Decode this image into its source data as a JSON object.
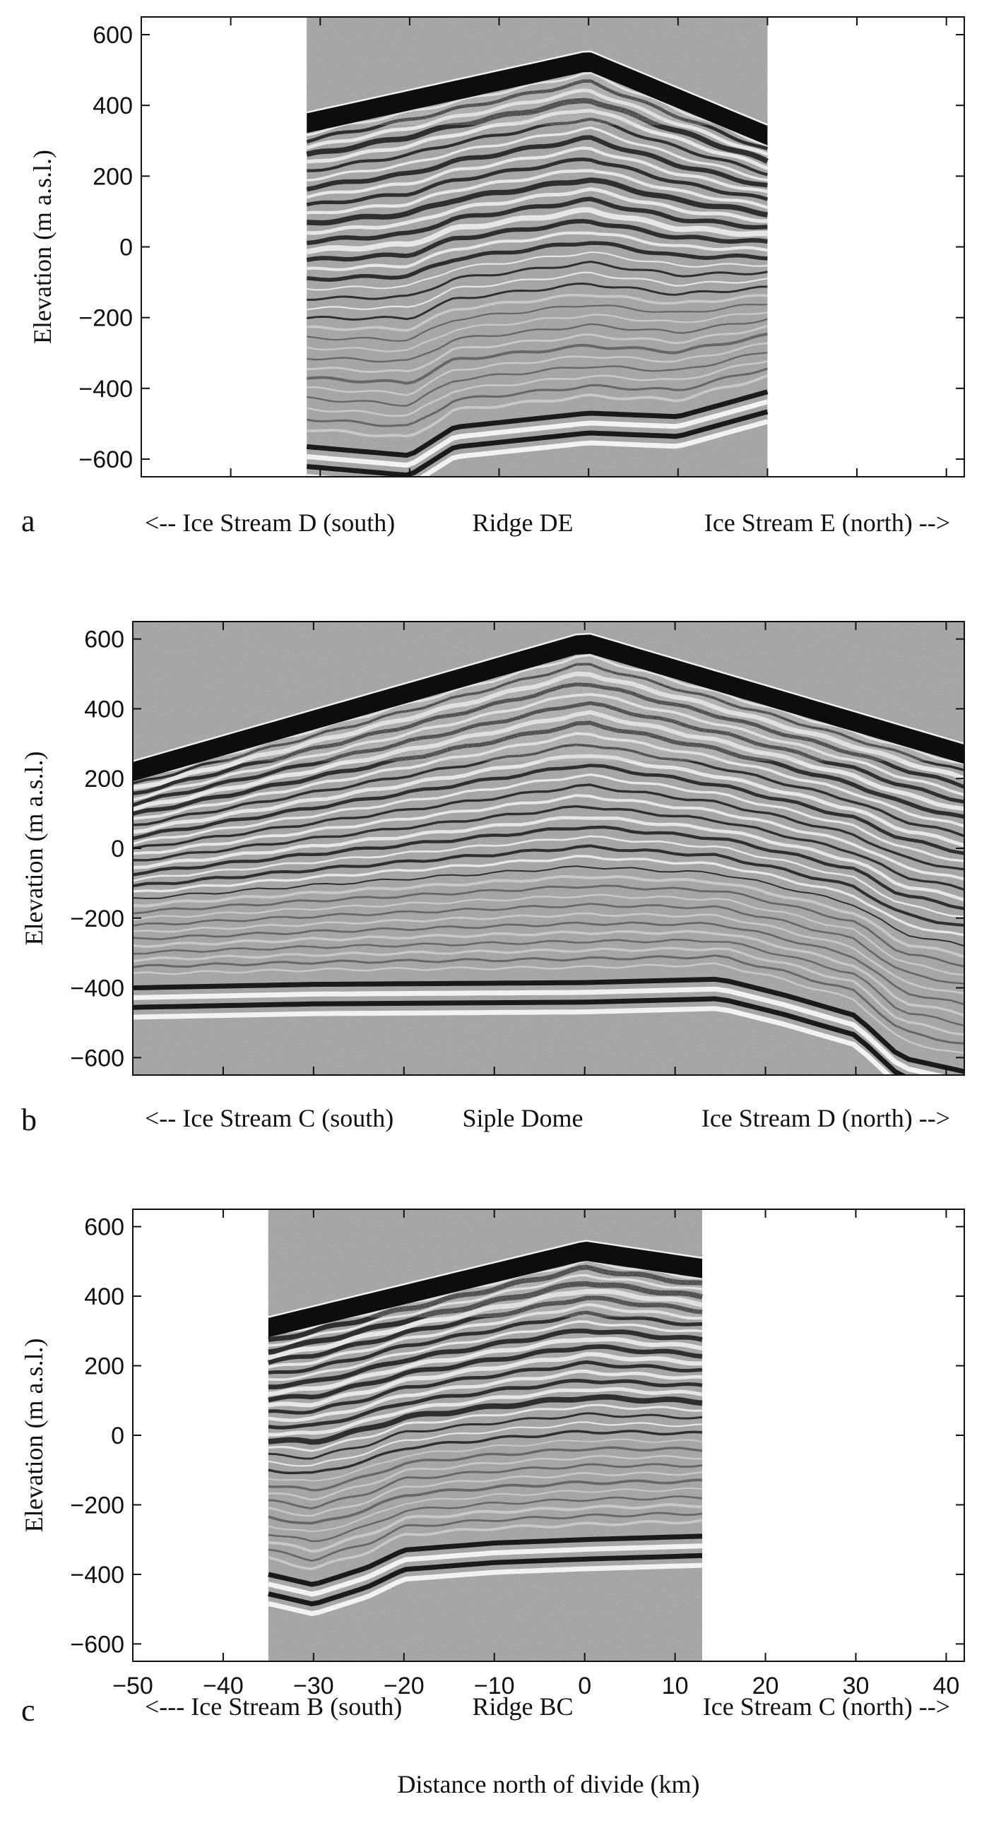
{
  "chart_data": [
    {
      "type": "heatmap",
      "panel_letter": "a",
      "ylabel": "Elevation (m a.s.l.)",
      "ylim": [
        -650,
        650
      ],
      "xlim": [
        -50,
        42
      ],
      "yticks": [
        600,
        400,
        200,
        0,
        -200,
        -400,
        -600
      ],
      "xticks": [
        -50,
        -40,
        -30,
        -20,
        -10,
        0,
        10,
        20,
        30,
        40
      ],
      "show_xtick_labels": false,
      "data_x_range": [
        -31.5,
        20
      ],
      "surface": [
        [
          -31.5,
          380
        ],
        [
          0,
          555
        ],
        [
          20,
          345
        ]
      ],
      "bed": [
        [
          -31.5,
          -565
        ],
        [
          -20,
          -590
        ],
        [
          -15,
          -510
        ],
        [
          0,
          -470
        ],
        [
          10,
          -480
        ],
        [
          20,
          -410
        ]
      ],
      "layer_peak_x": 0,
      "captions": {
        "left": "<-- Ice Stream D (south)",
        "center": "Ridge DE",
        "right": "Ice Stream E (north) -->"
      }
    },
    {
      "type": "heatmap",
      "panel_letter": "b",
      "ylabel": "Elevation (m a.s.l.)",
      "ylim": [
        -650,
        650
      ],
      "xlim": [
        -50,
        42
      ],
      "yticks": [
        600,
        400,
        200,
        0,
        -200,
        -400,
        -600
      ],
      "xticks": [
        -50,
        -40,
        -30,
        -20,
        -10,
        0,
        10,
        20,
        30,
        40
      ],
      "show_xtick_labels": false,
      "data_x_range": [
        -50,
        42
      ],
      "surface": [
        [
          -50,
          250
        ],
        [
          0,
          620
        ],
        [
          42,
          300
        ]
      ],
      "bed": [
        [
          -50,
          -400
        ],
        [
          -30,
          -390
        ],
        [
          0,
          -385
        ],
        [
          15,
          -375
        ],
        [
          22,
          -420
        ],
        [
          30,
          -480
        ],
        [
          35,
          -600
        ],
        [
          42,
          -640
        ]
      ],
      "layer_peak_x": 0,
      "captions": {
        "left": "<-- Ice Stream C (south)",
        "center": "Siple Dome",
        "right": "Ice Stream D (north) -->"
      }
    },
    {
      "type": "heatmap",
      "panel_letter": "c",
      "ylabel": "Elevation (m a.s.l.)",
      "ylim": [
        -650,
        650
      ],
      "xlim": [
        -50,
        42
      ],
      "yticks": [
        600,
        400,
        200,
        0,
        -200,
        -400,
        -600
      ],
      "xticks": [
        -50,
        -40,
        -30,
        -20,
        -10,
        0,
        10,
        20,
        30,
        40
      ],
      "show_xtick_labels": true,
      "data_x_range": [
        -35,
        13
      ],
      "surface": [
        [
          -35,
          340
        ],
        [
          0,
          560
        ],
        [
          13,
          510
        ]
      ],
      "bed": [
        [
          -35,
          -400
        ],
        [
          -30,
          -430
        ],
        [
          -24,
          -380
        ],
        [
          -20,
          -330
        ],
        [
          -10,
          -310
        ],
        [
          0,
          -300
        ],
        [
          13,
          -290
        ]
      ],
      "layer_peak_x": 0,
      "captions": {
        "left": "<--- Ice Stream B (south)",
        "center": "Ridge BC",
        "right": "Ice Stream C (north) -->"
      },
      "xlabel": "Distance north of divide (km)"
    }
  ],
  "colors": {
    "background_noise": "#9a9a9a",
    "firn_band": "#0d0d0d",
    "layer_dark": "#1a1a1a",
    "layer_light": "#f2f2f2",
    "frame": "#111111"
  }
}
